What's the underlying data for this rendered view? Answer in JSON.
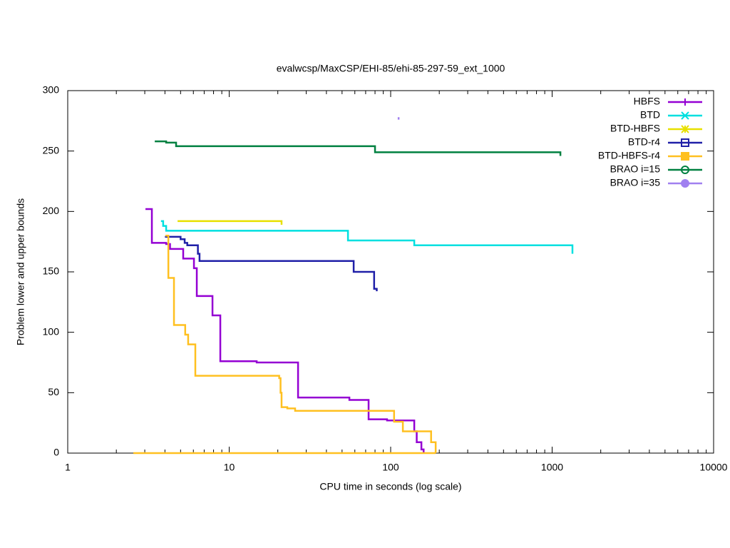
{
  "chart_data": {
    "type": "step",
    "title": "evalwcsp/MaxCSP/EHI-85/ehi-85-297-59_ext_1000",
    "x_label": "CPU time in seconds (log scale)",
    "y_label": "Problem lower and upper bounds",
    "xscale": "log",
    "xlim": [
      1,
      10000
    ],
    "xticks": [
      1,
      10,
      100,
      1000,
      10000
    ],
    "ylim": [
      0,
      300
    ],
    "yticks": [
      0,
      50,
      100,
      150,
      200,
      250,
      300
    ],
    "legend": "top-right",
    "series": [
      {
        "name": "HBFS",
        "color": "#9400d3",
        "marker": "plus",
        "x": [
          3.03,
          3.32,
          4.07,
          4.3,
          5.19,
          6.05,
          6.3,
          7.88,
          8.81,
          14.8,
          26.7,
          55.5,
          73,
          95,
          140,
          145,
          155,
          160
        ],
        "values": [
          202,
          174,
          173,
          169,
          161,
          153,
          130,
          114,
          76,
          75,
          46,
          44,
          28,
          27,
          18,
          9,
          3,
          0
        ]
      },
      {
        "name": "BTD",
        "color": "#00e0e0",
        "marker": "cross",
        "x": [
          3.78,
          3.9,
          4.07,
          54.4,
          140,
          1336
        ],
        "values": [
          192,
          188,
          184,
          176,
          172,
          165
        ]
      },
      {
        "name": "BTD-HBFS",
        "color": "#e8e000",
        "marker": "asterisk",
        "x": [
          4.79,
          21.1
        ],
        "values": [
          192,
          189
        ]
      },
      {
        "name": "BTD-r4",
        "color": "#2020a8",
        "marker": "square",
        "x": [
          4.0,
          5.0,
          5.3,
          5.5,
          6.4,
          6.55,
          59,
          79,
          82
        ],
        "values": [
          179,
          177,
          174,
          172,
          165,
          159,
          150,
          136,
          134
        ]
      },
      {
        "name": "BTD-HBFS-r4",
        "color": "#ffc020",
        "marker": "filled-square",
        "x": [
          4.03,
          4.2,
          4.55,
          5.34,
          5.57,
          6.17,
          20.4,
          20.8,
          21.1,
          22.9,
          25.6,
          105,
          119,
          178,
          190,
          null,
          2.55,
          190
        ],
        "values": [
          180,
          145,
          106,
          98,
          90,
          64,
          62,
          50,
          38,
          37,
          35,
          26,
          18,
          9,
          0,
          null,
          0,
          0
        ]
      },
      {
        "name": "BRAO i=15",
        "color": "#008040",
        "marker": "circle",
        "x": [
          3.46,
          4.07,
          4.69,
          80,
          1125
        ],
        "values": [
          258,
          257,
          254,
          249,
          246
        ]
      },
      {
        "name": "BRAO i=35",
        "color": "#a080f0",
        "marker": "filled-circle",
        "x": [
          112,
          112
        ],
        "values": [
          278,
          276
        ]
      }
    ]
  }
}
